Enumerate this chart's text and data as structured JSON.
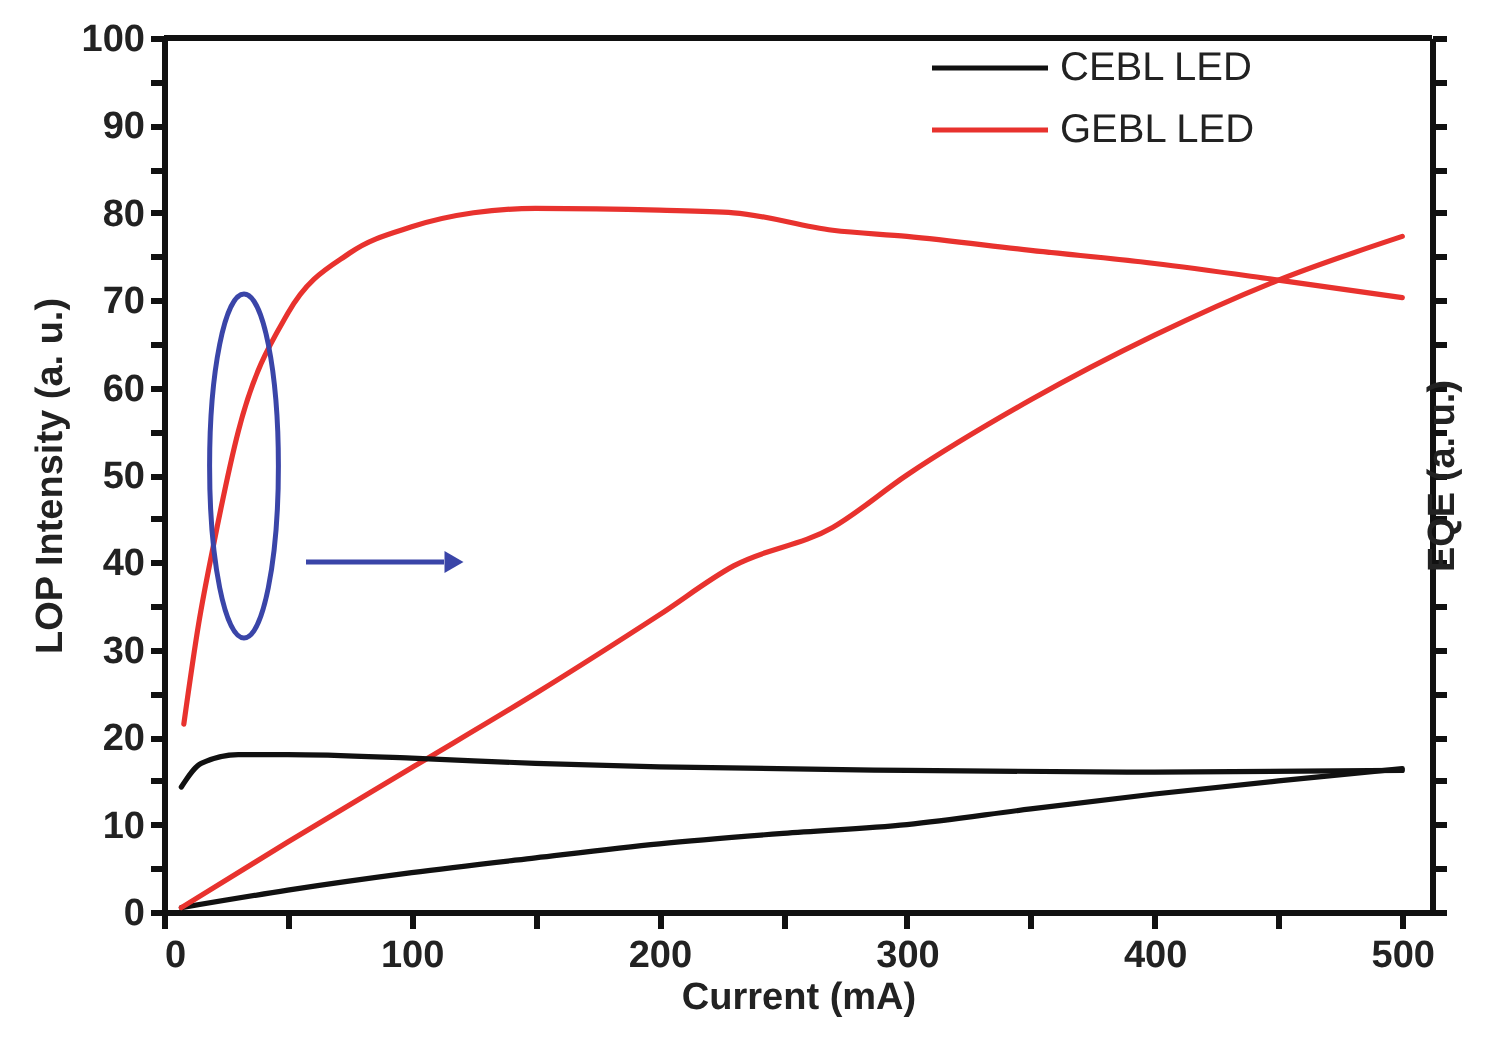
{
  "chart_data": {
    "type": "line",
    "xlabel": "Current (mA)",
    "ylabel": "LOP Intensity (a. u.)",
    "y2label": "EQE (a. u.)",
    "xlim": [
      0,
      512
    ],
    "xticks": [
      0,
      {
        "value": 50,
        "label": null
      },
      100,
      {
        "value": 150,
        "label": null
      },
      200,
      {
        "value": 250,
        "label": null
      },
      300,
      {
        "value": 350,
        "label": null
      },
      400,
      {
        "value": 450,
        "label": null
      },
      500
    ],
    "ylim": [
      0,
      100
    ],
    "yticks": [
      0,
      {
        "value": 5,
        "label": null
      },
      10,
      {
        "value": 15,
        "label": null
      },
      20,
      {
        "value": 25,
        "label": null
      },
      30,
      {
        "value": 35,
        "label": null
      },
      40,
      {
        "value": 45,
        "label": null
      },
      50,
      {
        "value": 55,
        "label": null
      },
      60,
      {
        "value": 65,
        "label": null
      },
      70,
      {
        "value": 75,
        "label": null
      },
      80,
      {
        "value": 85,
        "label": null
      },
      90,
      {
        "value": 95,
        "label": null
      },
      100
    ],
    "legend": "top right",
    "grid": false,
    "marker": "none",
    "line_style": "solid",
    "series": [
      {
        "name": "CEBL LED",
        "color": "#111111",
        "x": [
          7,
          50,
          100,
          150,
          200,
          250,
          300,
          350,
          400,
          450,
          500
        ],
        "values": [
          0.5,
          2.5,
          4.5,
          6.2,
          7.8,
          9,
          10,
          11.8,
          13.5,
          15,
          16.4
        ]
      },
      {
        "name": "GEBL LED",
        "color": "#e8322e",
        "x": [
          7,
          50,
          100,
          150,
          200,
          230,
          270,
          300,
          350,
          400,
          450,
          500
        ],
        "values": [
          0.5,
          8,
          16.5,
          25,
          34,
          39.6,
          44,
          50,
          58.6,
          66,
          72.3,
          77.3
        ]
      },
      {
        "color": "#111111",
        "x": [
          7,
          15,
          30,
          50,
          100,
          150,
          200,
          300,
          400,
          500
        ],
        "values": [
          14.3,
          17,
          18,
          18,
          17.6,
          17,
          16.6,
          16.2,
          16,
          16.2
        ]
      },
      {
        "color": "#e8322e",
        "x": [
          8,
          14,
          20,
          30,
          50,
          75,
          100,
          125,
          150,
          200,
          230,
          270,
          300,
          350,
          400,
          450,
          500
        ],
        "values": [
          21.5,
          33,
          42,
          55,
          68.5,
          75.4,
          78.4,
          80,
          80.5,
          80.3,
          80,
          78,
          77.3,
          75.7,
          74.2,
          72.3,
          70.3
        ]
      }
    ]
  }
}
